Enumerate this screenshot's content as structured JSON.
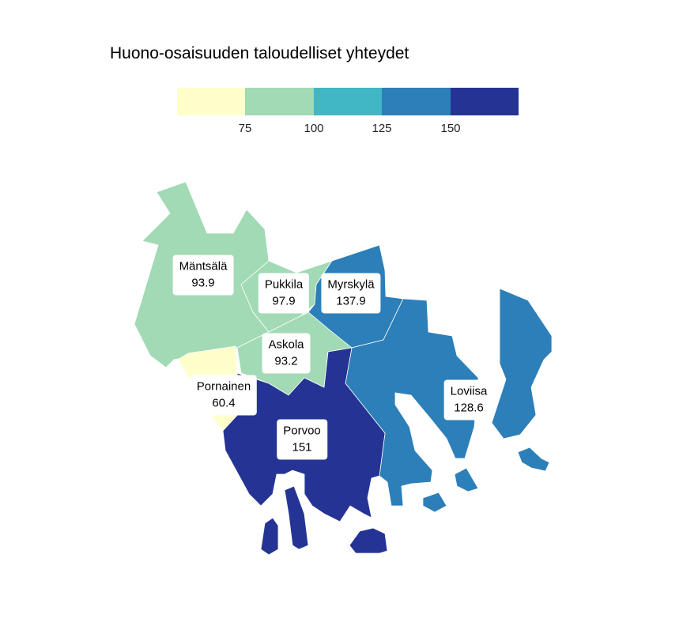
{
  "title": "Huono-osaisuuden taloudelliset yhteydet",
  "legend": {
    "colors": [
      "#ffffcc",
      "#a1dab4",
      "#41b6c4",
      "#2c7fb8",
      "#253494"
    ],
    "ticks": [
      "75",
      "100",
      "125",
      "150"
    ]
  },
  "regions": [
    {
      "name": "Mäntsälä",
      "value": "93.9",
      "color": "#a1dab4"
    },
    {
      "name": "Pukkila",
      "value": "97.9",
      "color": "#a1dab4"
    },
    {
      "name": "Myrskylä",
      "value": "137.9",
      "color": "#2c7fb8"
    },
    {
      "name": "Askola",
      "value": "93.2",
      "color": "#a1dab4"
    },
    {
      "name": "Pornainen",
      "value": "60.4",
      "color": "#ffffcc"
    },
    {
      "name": "Loviisa",
      "value": "128.6",
      "color": "#2c7fb8"
    },
    {
      "name": "Porvoo",
      "value": "151",
      "color": "#253494"
    }
  ]
}
